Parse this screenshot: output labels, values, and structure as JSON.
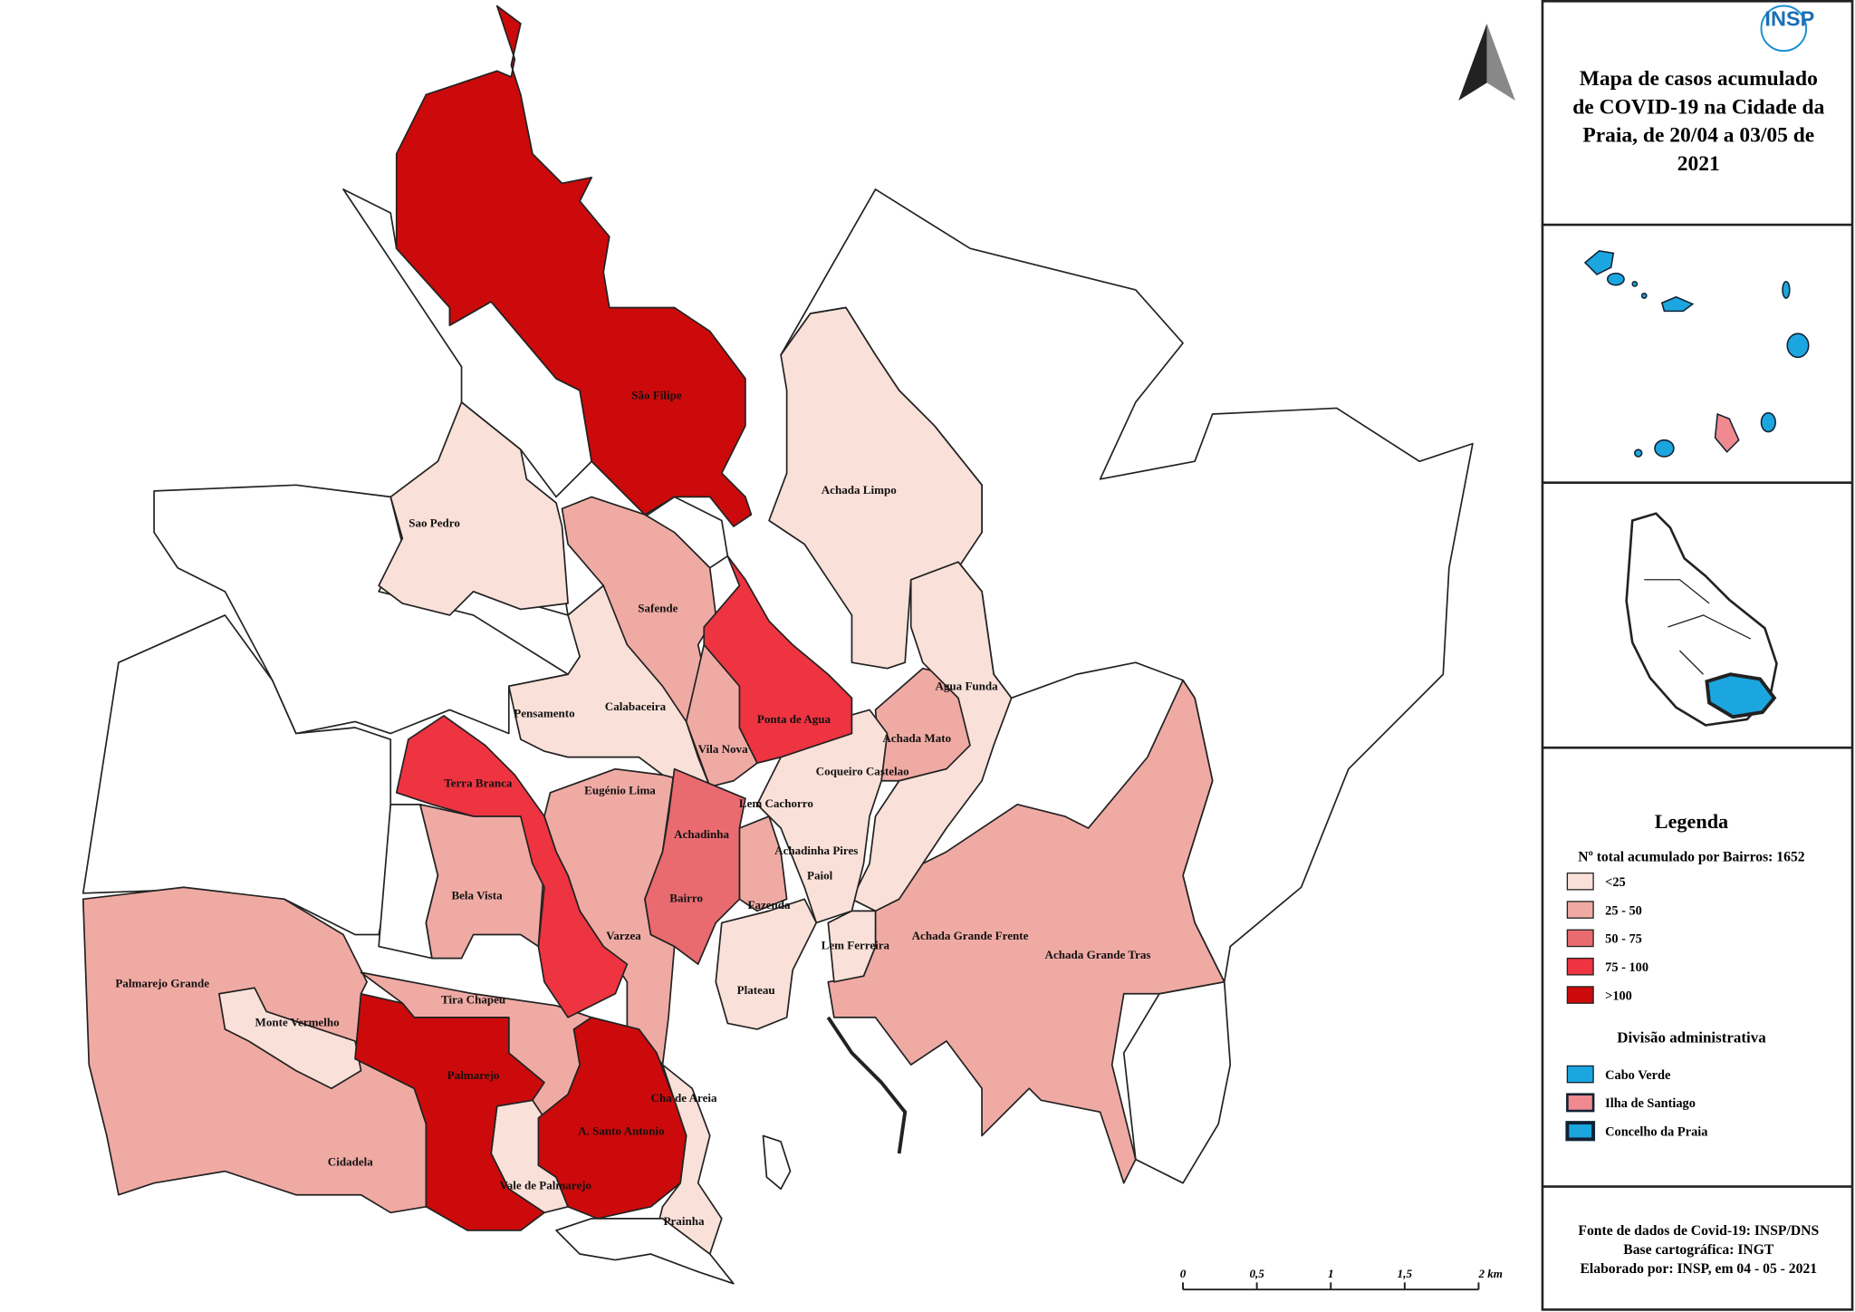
{
  "logo": "INSP",
  "title": [
    "Mapa de casos  acumulado",
    "de COVID-19 na Cidade da",
    "Praia, de 20/04 a 03/05 de",
    "2021"
  ],
  "neighborhoods": [
    "São Filipe",
    "Achada Limpo",
    "Sao Pedro",
    "Safende",
    "Agua Funda",
    "Pensamento",
    "Calabaceira",
    "Ponta de Agua",
    "Vila Nova",
    "Achada Mato",
    "Terra Branca",
    "Eugénio Lima",
    "Coqueiro Castelao",
    "Lem Cachorro",
    "Achadinha",
    "Achadinha Pires",
    "Paiol",
    "Bela Vista",
    "Bairro",
    "Fazenda",
    "Varzea",
    "Achada Grande Frente",
    "Lem Ferreira",
    "Achada Grande Tras",
    "Palmarejo Grande",
    "Plateau",
    "Tira Chapeu",
    "Monte Vermelho",
    "Palmarejo",
    "Cha de Areia",
    "A. Santo Antonio",
    "Cidadela",
    "Vale de Palmarejo",
    "Prainha"
  ],
  "legend": {
    "title": "Legenda",
    "subtitle": "Nº total acumulado por Bairros: 1652",
    "classes": [
      {
        "label": "<25",
        "color": "#f9e0d8"
      },
      {
        "label": "25 - 50",
        "color": "#f0aaa4"
      },
      {
        "label": "50 - 75",
        "color": "#e96b70"
      },
      {
        "label": "75 - 100",
        "color": "#ee3341"
      },
      {
        "label": ">100",
        "color": "#cc0a0b"
      }
    ],
    "division_title": "Divisão administrativa",
    "divisions": [
      {
        "label": "Cabo Verde",
        "color": "#1ba6e0"
      },
      {
        "label": "Ilha de Santiago",
        "color": "#f08a90"
      },
      {
        "label": "Concelho da Praia",
        "color": "#1ba6e0"
      }
    ]
  },
  "scale_bar": [
    "0",
    "0,5",
    "1",
    "1,5",
    "2 km"
  ],
  "source": [
    "Fonte de dados de Covid-19: INSP/DNS",
    "Base cartográfica: INGT",
    "Elaborado por: INSP, em 04 - 05 - 2021"
  ]
}
